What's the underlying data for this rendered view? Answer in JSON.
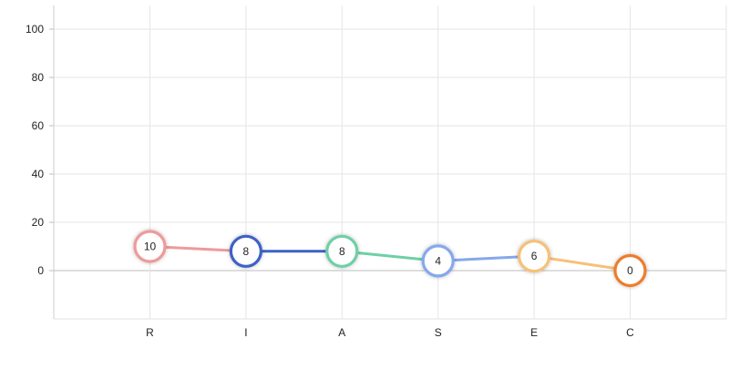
{
  "chart_data": {
    "type": "line",
    "categories": [
      "R",
      "I",
      "A",
      "S",
      "E",
      "C"
    ],
    "values": [
      10,
      8,
      8,
      4,
      6,
      0
    ],
    "point_labels": [
      "10",
      "8",
      "8",
      "4",
      "6",
      "0"
    ],
    "colors": [
      "#ee9a9a",
      "#3d62c6",
      "#6fcfa7",
      "#86a8ec",
      "#f6c07a",
      "#ee7b2a"
    ],
    "ylim": [
      -20,
      110
    ],
    "yticks": [
      100,
      80,
      60,
      40,
      20,
      0
    ],
    "ytick_labels": [
      "100",
      "80",
      "60",
      "40",
      "20",
      "0"
    ],
    "grid": true,
    "title": "",
    "xlabel": "",
    "ylabel": ""
  }
}
